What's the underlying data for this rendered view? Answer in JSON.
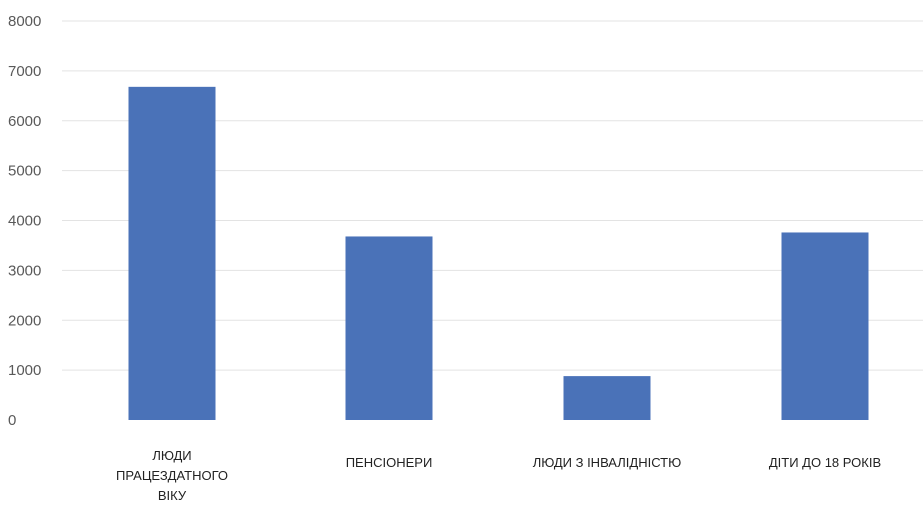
{
  "chart_data": {
    "type": "bar",
    "categories": [
      [
        "ЛЮДИ",
        "ПРАЦЕЗДАТНОГО",
        "ВІКУ"
      ],
      [
        "ПЕНСІОНЕРИ"
      ],
      [
        "ЛЮДИ З ІНВАЛІДНІСТЮ"
      ],
      [
        "ДІТИ ДО 18 РОКІВ"
      ]
    ],
    "values": [
      6680,
      3680,
      880,
      3760
    ],
    "ylim": [
      0,
      8000
    ],
    "yticks": [
      "0",
      "1000",
      "2000",
      "3000",
      "4000",
      "5000",
      "6000",
      "7000",
      "8000"
    ],
    "grid": true,
    "bar_color": "#4a72b8",
    "title": "",
    "xlabel": "",
    "ylabel": ""
  }
}
